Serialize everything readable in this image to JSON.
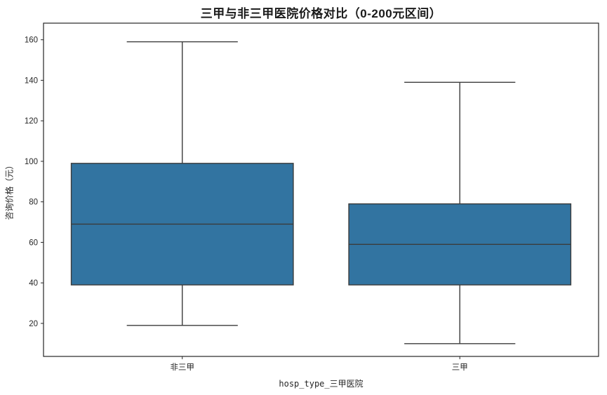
{
  "chart_data": {
    "type": "boxplot",
    "title": "三甲与非三甲医院价格对比（0-200元区间）",
    "xlabel": "hosp_type_三甲医院",
    "ylabel": "咨询价格（元）",
    "categories": [
      "非三甲",
      "三甲"
    ],
    "yticks": [
      20,
      40,
      60,
      80,
      100,
      120,
      140,
      160
    ],
    "ylim": [
      3.7,
      168.2
    ],
    "legend": "none",
    "grid": false,
    "series": [
      {
        "name": "非三甲",
        "whisker_low": 19,
        "q1": 39,
        "median": 69,
        "q3": 99,
        "whisker_high": 159
      },
      {
        "name": "三甲",
        "whisker_low": 10,
        "q1": 39,
        "median": 59,
        "q3": 79,
        "whisker_high": 139
      }
    ],
    "colors": {
      "box_fill": "#3274a1",
      "box_edge": "#3b3b3b",
      "whisker": "#3b3b3b",
      "median": "#3b3b3b",
      "spine": "#262626",
      "text": "#262626"
    }
  }
}
